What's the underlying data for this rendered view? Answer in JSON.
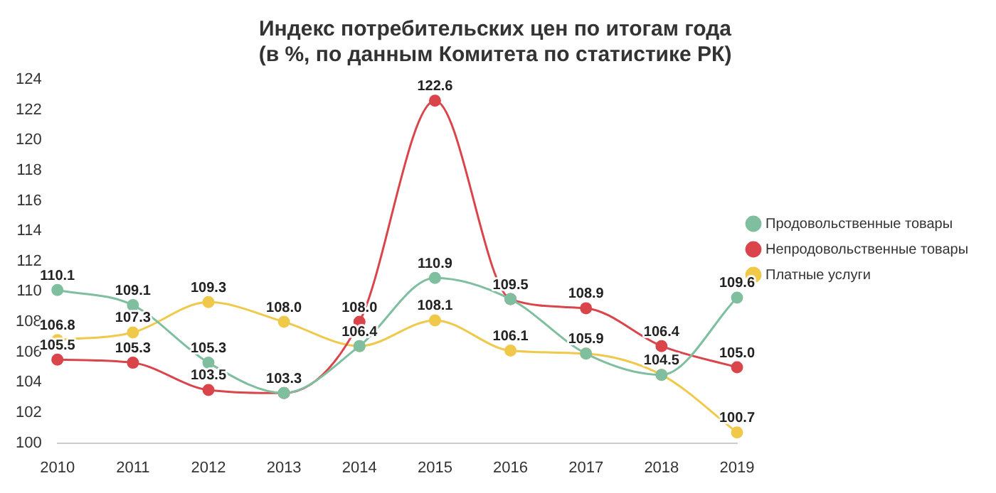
{
  "chart_data": {
    "type": "line",
    "title": "Индекс потребительских цен по итогам года",
    "subtitle": "(в %, по данным Комитета по статистике РК)",
    "categories": [
      "2010",
      "2011",
      "2012",
      "2013",
      "2014",
      "2015",
      "2016",
      "2017",
      "2018",
      "2019"
    ],
    "series": [
      {
        "name": "Продовольственные товары",
        "color": "#7fbf9f",
        "values": [
          110.1,
          109.1,
          105.3,
          103.3,
          106.4,
          110.9,
          109.5,
          105.9,
          104.5,
          109.6
        ],
        "value_labels": [
          "110.1",
          "109.1",
          "105.3",
          null,
          null,
          "110.9",
          null,
          null,
          null,
          "109.6"
        ]
      },
      {
        "name": "Непродовольственные товары",
        "color": "#d9454a",
        "values": [
          105.5,
          105.3,
          103.5,
          103.3,
          108.0,
          122.6,
          109.5,
          108.9,
          106.4,
          105.0
        ],
        "value_labels": [
          "105.5",
          "105.3",
          "103.5",
          "103.3",
          "108.0",
          "122.6",
          "109.5",
          "108.9",
          "106.4",
          "105.0"
        ]
      },
      {
        "name": "Платные услуги",
        "color": "#f0c84a",
        "values": [
          106.8,
          107.3,
          109.3,
          108.0,
          106.4,
          108.1,
          106.1,
          105.9,
          104.5,
          100.7
        ],
        "value_labels": [
          "106.8",
          "107.3",
          "109.3",
          "108.0",
          "106.4",
          "108.1",
          "106.1",
          "105.9",
          "104.5",
          "100.7"
        ]
      }
    ],
    "ylim": [
      100,
      124
    ],
    "yticks": [
      100,
      102,
      104,
      106,
      108,
      110,
      112,
      114,
      116,
      118,
      120,
      122,
      124
    ],
    "grid": false,
    "legend": "right",
    "marker": "circle",
    "line_style": "solid"
  }
}
